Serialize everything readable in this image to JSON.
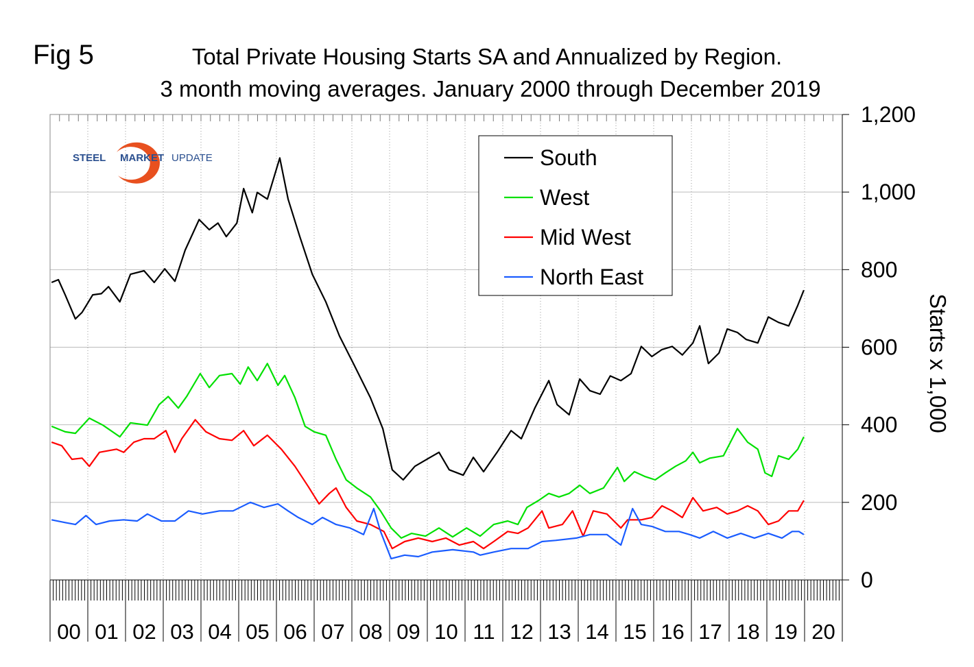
{
  "chart_data": {
    "type": "line",
    "figure_label": "Fig 5",
    "title": "Total Private Housing Starts SA and Annualized by Region.",
    "subtitle": "3 month moving averages. January 2000 through December 2019",
    "y_label": "Starts x 1,000",
    "logo": [
      "STEEL",
      "MARKET",
      "UPDATE"
    ],
    "xlim": [
      2000,
      2021
    ],
    "ylim": [
      0,
      1200
    ],
    "yticks": [
      0,
      200,
      400,
      600,
      800,
      {
        "value": 1000,
        "label": "1,000"
      },
      {
        "value": 1200,
        "label": "1,200"
      }
    ],
    "xticks": [
      {
        "value": 2000.5,
        "label": "00"
      },
      {
        "value": 2001.5,
        "label": "01"
      },
      {
        "value": 2002.5,
        "label": "02"
      },
      {
        "value": 2003.5,
        "label": "03"
      },
      {
        "value": 2004.5,
        "label": "04"
      },
      {
        "value": 2005.5,
        "label": "05"
      },
      {
        "value": 2006.5,
        "label": "06"
      },
      {
        "value": 2007.5,
        "label": "07"
      },
      {
        "value": 2008.5,
        "label": "08"
      },
      {
        "value": 2009.5,
        "label": "09"
      },
      {
        "value": 2010.5,
        "label": "10"
      },
      {
        "value": 2011.5,
        "label": "11"
      },
      {
        "value": 2012.5,
        "label": "12"
      },
      {
        "value": 2013.5,
        "label": "13"
      },
      {
        "value": 2014.5,
        "label": "14"
      },
      {
        "value": 2015.5,
        "label": "15"
      },
      {
        "value": 2016.5,
        "label": "16"
      },
      {
        "value": 2017.5,
        "label": "17"
      },
      {
        "value": 2018.5,
        "label": "18"
      },
      {
        "value": 2019.5,
        "label": "19"
      },
      {
        "value": 2020.5,
        "label": "20"
      }
    ],
    "grid": true,
    "legend": "top-right",
    "series": [
      {
        "name": "South",
        "color": "#000000",
        "x": [
          2000.04,
          2000.22,
          2000.4,
          2000.67,
          2000.85,
          2001.13,
          2001.36,
          2001.55,
          2001.85,
          2002.13,
          2002.49,
          2002.76,
          2003.04,
          2003.31,
          2003.58,
          2003.95,
          2004.22,
          2004.45,
          2004.67,
          2004.95,
          2005.13,
          2005.36,
          2005.49,
          2005.76,
          2006.09,
          2006.31,
          2006.62,
          2006.95,
          2007.31,
          2007.67,
          2008.04,
          2008.49,
          2008.82,
          2009.07,
          2009.36,
          2009.67,
          2010.04,
          2010.31,
          2010.58,
          2010.95,
          2011.22,
          2011.49,
          2011.85,
          2012.22,
          2012.49,
          2012.85,
          2013.22,
          2013.44,
          2013.76,
          2014.04,
          2014.31,
          2014.58,
          2014.85,
          2015.13,
          2015.4,
          2015.67,
          2015.95,
          2016.22,
          2016.49,
          2016.76,
          2017.04,
          2017.22,
          2017.45,
          2017.73,
          2017.95,
          2018.22,
          2018.45,
          2018.76,
          2019.04,
          2019.31,
          2019.58,
          2019.82,
          2019.98
        ],
        "values": [
          767,
          774,
          735,
          673,
          690,
          735,
          738,
          756,
          717,
          788,
          797,
          767,
          802,
          770,
          850,
          929,
          903,
          920,
          885,
          920,
          1009,
          947,
          999,
          982,
          1088,
          982,
          885,
          788,
          717,
          629,
          558,
          470,
          390,
          284,
          258,
          293,
          314,
          329,
          284,
          270,
          316,
          279,
          329,
          385,
          364,
          443,
          514,
          452,
          426,
          518,
          488,
          479,
          526,
          514,
          532,
          602,
          576,
          594,
          602,
          580,
          611,
          655,
          558,
          585,
          647,
          638,
          620,
          611,
          678,
          664,
          655,
          708,
          747
        ]
      },
      {
        "name": "West",
        "color": "#00e000",
        "x": [
          2000.04,
          2000.4,
          2000.67,
          2001.04,
          2001.4,
          2001.85,
          2002.13,
          2002.58,
          2002.89,
          2003.13,
          2003.4,
          2003.62,
          2003.98,
          2004.22,
          2004.49,
          2004.82,
          2005.04,
          2005.25,
          2005.49,
          2005.76,
          2006.04,
          2006.22,
          2006.49,
          2006.76,
          2007.0,
          2007.31,
          2007.58,
          2007.85,
          2008.13,
          2008.49,
          2008.76,
          2009.04,
          2009.31,
          2009.58,
          2009.95,
          2010.31,
          2010.67,
          2011.04,
          2011.4,
          2011.76,
          2012.13,
          2012.4,
          2012.64,
          2012.95,
          2013.22,
          2013.49,
          2013.76,
          2014.04,
          2014.31,
          2014.67,
          2015.04,
          2015.22,
          2015.49,
          2015.76,
          2016.04,
          2016.31,
          2016.58,
          2016.85,
          2017.04,
          2017.22,
          2017.49,
          2017.85,
          2018.22,
          2018.49,
          2018.76,
          2018.95,
          2019.13,
          2019.31,
          2019.58,
          2019.82,
          2019.98
        ],
        "values": [
          396,
          382,
          378,
          417,
          399,
          369,
          405,
          399,
          452,
          473,
          443,
          473,
          532,
          496,
          527,
          532,
          505,
          549,
          514,
          558,
          502,
          527,
          470,
          396,
          382,
          373,
          311,
          258,
          237,
          214,
          178,
          134,
          108,
          120,
          113,
          134,
          111,
          134,
          113,
          143,
          152,
          143,
          187,
          205,
          223,
          214,
          223,
          244,
          223,
          237,
          290,
          254,
          279,
          267,
          258,
          276,
          293,
          307,
          329,
          302,
          314,
          320,
          390,
          355,
          337,
          276,
          267,
          320,
          311,
          337,
          369
        ]
      },
      {
        "name": "Mid West",
        "color": "#ff0000",
        "x": [
          2000.04,
          2000.31,
          2000.58,
          2000.85,
          2001.04,
          2001.31,
          2001.76,
          2001.95,
          2002.22,
          2002.49,
          2002.76,
          2003.07,
          2003.31,
          2003.49,
          2003.85,
          2004.13,
          2004.49,
          2004.82,
          2005.13,
          2005.4,
          2005.76,
          2006.13,
          2006.49,
          2006.85,
          2007.13,
          2007.4,
          2007.58,
          2007.85,
          2008.13,
          2008.49,
          2008.85,
          2009.07,
          2009.4,
          2009.76,
          2010.13,
          2010.49,
          2010.85,
          2011.22,
          2011.49,
          2011.76,
          2012.13,
          2012.4,
          2012.67,
          2013.04,
          2013.22,
          2013.58,
          2013.85,
          2014.13,
          2014.4,
          2014.76,
          2015.13,
          2015.31,
          2015.67,
          2015.95,
          2016.22,
          2016.49,
          2016.76,
          2017.04,
          2017.31,
          2017.67,
          2017.95,
          2018.22,
          2018.49,
          2018.76,
          2019.04,
          2019.31,
          2019.58,
          2019.82,
          2019.98
        ],
        "values": [
          355,
          346,
          311,
          314,
          293,
          329,
          337,
          329,
          355,
          364,
          364,
          385,
          329,
          364,
          413,
          382,
          364,
          360,
          385,
          346,
          373,
          337,
          293,
          240,
          196,
          223,
          237,
          187,
          152,
          143,
          125,
          81,
          99,
          108,
          99,
          108,
          90,
          99,
          81,
          99,
          125,
          120,
          134,
          178,
          134,
          143,
          178,
          113,
          178,
          170,
          134,
          155,
          155,
          161,
          191,
          178,
          161,
          212,
          178,
          187,
          170,
          178,
          191,
          178,
          143,
          152,
          178,
          178,
          205
        ]
      },
      {
        "name": "North East",
        "color": "#1a5cff",
        "x": [
          2000.04,
          2000.4,
          2000.67,
          2000.95,
          2001.22,
          2001.58,
          2001.95,
          2002.31,
          2002.58,
          2002.95,
          2003.31,
          2003.67,
          2004.04,
          2004.49,
          2004.85,
          2005.31,
          2005.67,
          2006.04,
          2006.31,
          2006.58,
          2006.95,
          2007.22,
          2007.58,
          2007.95,
          2008.31,
          2008.58,
          2008.76,
          2009.04,
          2009.4,
          2009.76,
          2010.13,
          2010.67,
          2011.22,
          2011.4,
          2011.76,
          2012.22,
          2012.67,
          2013.04,
          2013.4,
          2013.95,
          2014.31,
          2014.76,
          2015.13,
          2015.44,
          2015.67,
          2015.95,
          2016.31,
          2016.67,
          2016.95,
          2017.22,
          2017.58,
          2017.95,
          2018.31,
          2018.67,
          2019.04,
          2019.4,
          2019.67,
          2019.85,
          2019.98
        ],
        "values": [
          155,
          148,
          143,
          166,
          143,
          152,
          155,
          152,
          170,
          152,
          152,
          178,
          170,
          178,
          178,
          200,
          187,
          196,
          178,
          161,
          143,
          161,
          143,
          134,
          117,
          184,
          125,
          55,
          64,
          60,
          72,
          78,
          72,
          64,
          72,
          81,
          81,
          99,
          102,
          108,
          117,
          117,
          90,
          184,
          143,
          138,
          125,
          125,
          117,
          108,
          125,
          108,
          120,
          108,
          120,
          108,
          125,
          125,
          117
        ]
      }
    ]
  }
}
